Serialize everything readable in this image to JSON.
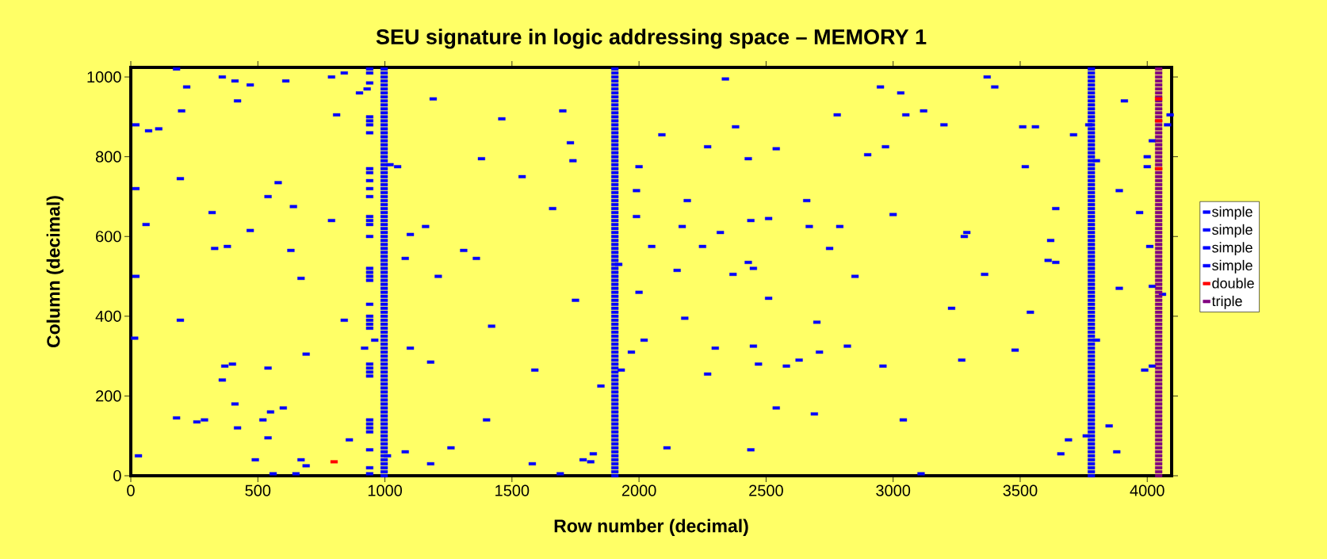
{
  "chart_data": {
    "type": "scatter",
    "title": "SEU signature in logic addressing space – MEMORY 1",
    "xlabel": "Row number (decimal)",
    "ylabel": "Column (decimal)",
    "xlim": [
      0,
      4096
    ],
    "ylim": [
      0,
      1024
    ],
    "xticks": [
      0,
      500,
      1000,
      1500,
      2000,
      2500,
      3000,
      3500,
      4000
    ],
    "yticks": [
      0,
      200,
      400,
      600,
      800,
      1000
    ],
    "legend": "right",
    "marker": "square",
    "series": [
      {
        "name": "simple",
        "color": "#0000ff",
        "x": [
          180,
          20,
          20,
          70,
          110,
          60,
          20,
          15,
          30,
          180,
          200,
          220,
          195,
          195,
          260,
          290,
          320,
          330,
          360,
          360,
          370,
          380,
          400,
          410,
          420,
          420,
          410,
          470,
          470,
          490,
          520,
          540,
          540,
          550,
          540,
          560,
          580,
          600,
          610,
          630,
          640,
          650,
          670,
          670,
          690,
          690,
          790,
          790,
          810,
          840,
          840,
          860,
          900,
          930,
          940,
          940,
          940,
          940,
          940,
          940,
          940,
          940,
          940,
          940,
          940,
          940,
          940,
          940,
          940,
          940,
          940,
          940,
          940,
          940,
          940,
          940,
          940,
          940,
          940,
          960,
          920,
          940,
          940,
          940,
          940,
          940,
          940,
          940,
          940,
          940,
          940,
          940,
          1010,
          1020,
          1050,
          1080,
          1080,
          1100,
          1100,
          1160,
          1180,
          1180,
          1190,
          1210,
          1260,
          1310,
          1360,
          1380,
          1400,
          1420,
          1460,
          1540,
          1580,
          1590,
          1660,
          1690,
          1700,
          1730,
          1740,
          1750,
          1780,
          1810,
          1820,
          1850,
          1920,
          1930,
          1970,
          1990,
          1990,
          2000,
          2000,
          2020,
          2050,
          2090,
          2110,
          2150,
          2170,
          2180,
          2190,
          2250,
          2270,
          2270,
          2300,
          2320,
          2340,
          2370,
          2380,
          2430,
          2430,
          2440,
          2440,
          2450,
          2450,
          2470,
          2510,
          2510,
          2540,
          2540,
          2580,
          2630,
          2660,
          2670,
          2690,
          2700,
          2710,
          2750,
          2780,
          2790,
          2820,
          2850,
          2900,
          2950,
          2960,
          2970,
          3000,
          3030,
          3040,
          3050,
          3110,
          3120,
          3200,
          3230,
          3270,
          3280,
          3290,
          3360,
          3370,
          3400,
          3480,
          3510,
          3520,
          3540,
          3560,
          3610,
          3620,
          3640,
          3640,
          3660,
          3690,
          3710,
          3760,
          3770,
          3800,
          3800,
          3850,
          3880,
          3890,
          3890,
          3910,
          3970,
          3990,
          4000,
          4000,
          4010,
          4020,
          4020,
          4020,
          4060,
          4080,
          4090
        ],
        "values": [
          1020,
          880,
          720,
          865,
          870,
          630,
          500,
          345,
          50,
          145,
          915,
          975,
          745,
          390,
          135,
          140,
          660,
          570,
          1000,
          240,
          275,
          575,
          280,
          180,
          120,
          940,
          990,
          980,
          615,
          40,
          140,
          270,
          95,
          160,
          700,
          5,
          735,
          170,
          990,
          565,
          675,
          5,
          495,
          40,
          25,
          305,
          640,
          1000,
          905,
          390,
          1010,
          90,
          960,
          970,
          1020,
          1010,
          985,
          900,
          890,
          880,
          860,
          770,
          760,
          740,
          720,
          700,
          650,
          640,
          630,
          600,
          520,
          510,
          500,
          490,
          430,
          400,
          390,
          380,
          370,
          340,
          320,
          280,
          270,
          260,
          250,
          140,
          130,
          120,
          110,
          65,
          20,
          5,
          50,
          780,
          775,
          60,
          545,
          605,
          320,
          625,
          30,
          285,
          945,
          500,
          70,
          565,
          545,
          795,
          140,
          375,
          895,
          750,
          30,
          265,
          670,
          5,
          915,
          835,
          790,
          440,
          40,
          35,
          55,
          225,
          530,
          265,
          310,
          715,
          650,
          775,
          460,
          340,
          575,
          855,
          70,
          515,
          625,
          395,
          690,
          575,
          255,
          825,
          320,
          610,
          995,
          505,
          875,
          795,
          535,
          65,
          640,
          325,
          520,
          280,
          645,
          445,
          170,
          820,
          275,
          290,
          690,
          625,
          155,
          385,
          310,
          570,
          905,
          625,
          325,
          500,
          805,
          975,
          275,
          825,
          655,
          960,
          140,
          905,
          5,
          915,
          880,
          420,
          290,
          600,
          610,
          505,
          1000,
          975,
          315,
          875,
          775,
          410,
          875,
          540,
          590,
          670,
          535,
          55,
          90,
          855,
          100,
          880,
          790,
          340,
          125,
          60,
          715,
          470,
          940,
          660,
          265,
          775,
          800,
          575,
          840,
          275,
          475,
          455,
          880,
          905
        ]
      },
      {
        "name": "simple",
        "color": "#0000ff",
        "x": [
          997,
          997,
          997,
          997,
          997,
          997,
          997,
          997,
          997,
          997,
          997,
          997,
          997,
          997,
          997,
          997,
          997,
          997,
          997,
          997,
          997,
          997,
          997,
          997,
          997,
          997,
          997,
          997,
          997,
          997,
          997,
          997,
          997,
          997,
          997,
          997,
          997,
          997,
          997,
          997,
          997,
          997,
          997,
          997,
          997,
          997,
          997,
          997,
          997,
          997,
          997,
          997,
          997,
          997,
          997,
          997,
          997,
          997,
          997,
          997,
          997,
          997,
          997,
          997,
          997,
          997,
          997,
          997,
          997,
          997,
          997,
          997,
          997,
          997,
          997,
          997,
          997,
          997,
          997,
          997,
          997,
          997,
          997,
          997,
          997,
          997,
          997,
          997,
          997,
          997,
          997,
          997,
          997,
          997,
          997,
          997,
          997,
          997,
          997,
          997,
          997,
          997,
          997
        ],
        "values": [
          0,
          10,
          20,
          30,
          40,
          50,
          60,
          70,
          80,
          90,
          100,
          110,
          120,
          130,
          140,
          150,
          160,
          170,
          180,
          190,
          200,
          210,
          220,
          230,
          240,
          250,
          260,
          270,
          280,
          290,
          300,
          310,
          320,
          330,
          340,
          350,
          360,
          370,
          380,
          390,
          400,
          410,
          420,
          430,
          440,
          450,
          460,
          470,
          480,
          490,
          500,
          510,
          520,
          530,
          540,
          550,
          560,
          570,
          580,
          590,
          600,
          610,
          620,
          630,
          640,
          650,
          660,
          670,
          680,
          690,
          700,
          710,
          720,
          730,
          740,
          750,
          760,
          770,
          780,
          790,
          800,
          810,
          820,
          830,
          840,
          850,
          860,
          870,
          880,
          890,
          900,
          910,
          920,
          930,
          940,
          950,
          960,
          970,
          980,
          990,
          1000,
          1010,
          1020
        ]
      },
      {
        "name": "simple",
        "color": "#0000ff",
        "x": [
          1905,
          1905,
          1905,
          1905,
          1905,
          1905,
          1905,
          1905,
          1905,
          1905,
          1905,
          1905,
          1905,
          1905,
          1905,
          1905,
          1905,
          1905,
          1905,
          1905,
          1905,
          1905,
          1905,
          1905,
          1905,
          1905,
          1905,
          1905,
          1905,
          1905,
          1905,
          1905,
          1905,
          1905,
          1905,
          1905,
          1905,
          1905,
          1905,
          1905,
          1905,
          1905,
          1905,
          1905,
          1905,
          1905,
          1905,
          1905,
          1905,
          1905,
          1905,
          1905,
          1905,
          1905,
          1905,
          1905,
          1905,
          1905,
          1905,
          1905,
          1905,
          1905,
          1905,
          1905,
          1905,
          1905,
          1905,
          1905,
          1905,
          1905,
          1905,
          1905,
          1905,
          1905,
          1905,
          1905,
          1905,
          1905,
          1905,
          1905,
          1905,
          1905,
          1905,
          1905,
          1905,
          1905,
          1905,
          1905,
          1905,
          1905,
          1905,
          1905,
          1905,
          1905,
          1905,
          1905,
          1905,
          1905,
          1905,
          1905,
          1905,
          1905,
          1905
        ],
        "values": [
          0,
          10,
          20,
          30,
          40,
          50,
          60,
          70,
          80,
          90,
          100,
          110,
          120,
          130,
          140,
          150,
          160,
          170,
          180,
          190,
          200,
          210,
          220,
          230,
          240,
          250,
          260,
          270,
          280,
          290,
          300,
          310,
          320,
          330,
          340,
          350,
          360,
          370,
          380,
          390,
          400,
          410,
          420,
          430,
          440,
          450,
          460,
          470,
          480,
          490,
          500,
          510,
          520,
          530,
          540,
          550,
          560,
          570,
          580,
          590,
          600,
          610,
          620,
          630,
          640,
          650,
          660,
          670,
          680,
          690,
          700,
          710,
          720,
          730,
          740,
          750,
          760,
          770,
          780,
          790,
          800,
          810,
          820,
          830,
          840,
          850,
          860,
          870,
          880,
          890,
          900,
          910,
          920,
          930,
          940,
          950,
          960,
          970,
          980,
          990,
          1000,
          1010,
          1020
        ]
      },
      {
        "name": "simple",
        "color": "#0000ff",
        "x": [
          3780,
          3780,
          3780,
          3780,
          3780,
          3780,
          3780,
          3780,
          3780,
          3780,
          3780,
          3780,
          3780,
          3780,
          3780,
          3780,
          3780,
          3780,
          3780,
          3780,
          3780,
          3780,
          3780,
          3780,
          3780,
          3780,
          3780,
          3780,
          3780,
          3780,
          3780,
          3780,
          3780,
          3780,
          3780,
          3780,
          3780,
          3780,
          3780,
          3780,
          3780,
          3780,
          3780,
          3780,
          3780,
          3780,
          3780,
          3780,
          3780,
          3780,
          3780,
          3780,
          3780,
          3780,
          3780,
          3780,
          3780,
          3780,
          3780,
          3780,
          3780,
          3780,
          3780,
          3780,
          3780,
          3780,
          3780,
          3780,
          3780,
          3780,
          3780,
          3780,
          3780,
          3780,
          3780,
          3780,
          3780,
          3780,
          3780,
          3780,
          3780,
          3780,
          3780,
          3780,
          3780,
          3780,
          3780,
          3780,
          3780,
          3780,
          3780,
          3780,
          3780,
          3780,
          3780,
          3780,
          3780,
          3780,
          3780,
          3780,
          3780,
          3780,
          3780
        ],
        "values": [
          0,
          10,
          20,
          30,
          40,
          50,
          60,
          70,
          80,
          90,
          100,
          110,
          120,
          130,
          140,
          150,
          160,
          170,
          180,
          190,
          200,
          210,
          220,
          230,
          240,
          250,
          260,
          270,
          280,
          290,
          300,
          310,
          320,
          330,
          340,
          350,
          360,
          370,
          380,
          390,
          400,
          410,
          420,
          430,
          440,
          450,
          460,
          470,
          480,
          490,
          500,
          510,
          520,
          530,
          540,
          550,
          560,
          570,
          580,
          590,
          600,
          610,
          620,
          630,
          640,
          650,
          660,
          670,
          680,
          690,
          700,
          710,
          720,
          730,
          740,
          750,
          760,
          770,
          780,
          790,
          800,
          810,
          820,
          830,
          840,
          850,
          860,
          870,
          880,
          890,
          900,
          910,
          920,
          930,
          940,
          950,
          960,
          970,
          980,
          990,
          1000,
          1010,
          1020
        ]
      },
      {
        "name": "double",
        "color": "#ff0000",
        "x": [
          800,
          4045,
          4045,
          4045
        ],
        "values": [
          35,
          945,
          890,
          770
        ]
      },
      {
        "name": "triple",
        "color": "#800080",
        "x": [
          4045,
          4045,
          4045,
          4045,
          4045,
          4045,
          4045,
          4045,
          4045,
          4045,
          4045,
          4045,
          4045,
          4045,
          4045,
          4045,
          4045,
          4045,
          4045,
          4045,
          4045,
          4045,
          4045,
          4045,
          4045,
          4045,
          4045,
          4045,
          4045,
          4045,
          4045,
          4045,
          4045,
          4045,
          4045,
          4045,
          4045,
          4045,
          4045,
          4045,
          4045,
          4045,
          4045,
          4045,
          4045,
          4045,
          4045,
          4045,
          4045,
          4045,
          4045,
          4045,
          4045,
          4045,
          4045,
          4045,
          4045,
          4045,
          4045,
          4045,
          4045,
          4045,
          4045,
          4045,
          4045,
          4045,
          4045,
          4045,
          4045,
          4045,
          4045,
          4045,
          4045,
          4045,
          4045,
          4045,
          4045,
          4045,
          4045,
          4045,
          4045,
          4045,
          4045,
          4045,
          4045,
          4045,
          4045,
          4045,
          4045,
          4045,
          4045,
          4045,
          4045,
          4045,
          4045,
          4045,
          4045,
          4045,
          4045,
          4045,
          4045,
          4045,
          4045
        ],
        "values": [
          0,
          10,
          20,
          30,
          40,
          50,
          60,
          70,
          80,
          90,
          100,
          110,
          120,
          130,
          140,
          150,
          160,
          170,
          180,
          190,
          200,
          210,
          220,
          230,
          240,
          250,
          260,
          270,
          280,
          290,
          300,
          310,
          320,
          330,
          340,
          350,
          360,
          370,
          380,
          390,
          400,
          410,
          420,
          430,
          440,
          450,
          460,
          470,
          480,
          490,
          500,
          510,
          520,
          530,
          540,
          550,
          560,
          570,
          580,
          590,
          600,
          610,
          620,
          630,
          640,
          650,
          660,
          670,
          680,
          690,
          700,
          710,
          720,
          730,
          740,
          750,
          760,
          770,
          780,
          790,
          800,
          810,
          820,
          830,
          840,
          850,
          860,
          870,
          880,
          890,
          900,
          910,
          920,
          930,
          940,
          950,
          960,
          970,
          980,
          990,
          1000,
          1010,
          1020
        ]
      }
    ]
  }
}
